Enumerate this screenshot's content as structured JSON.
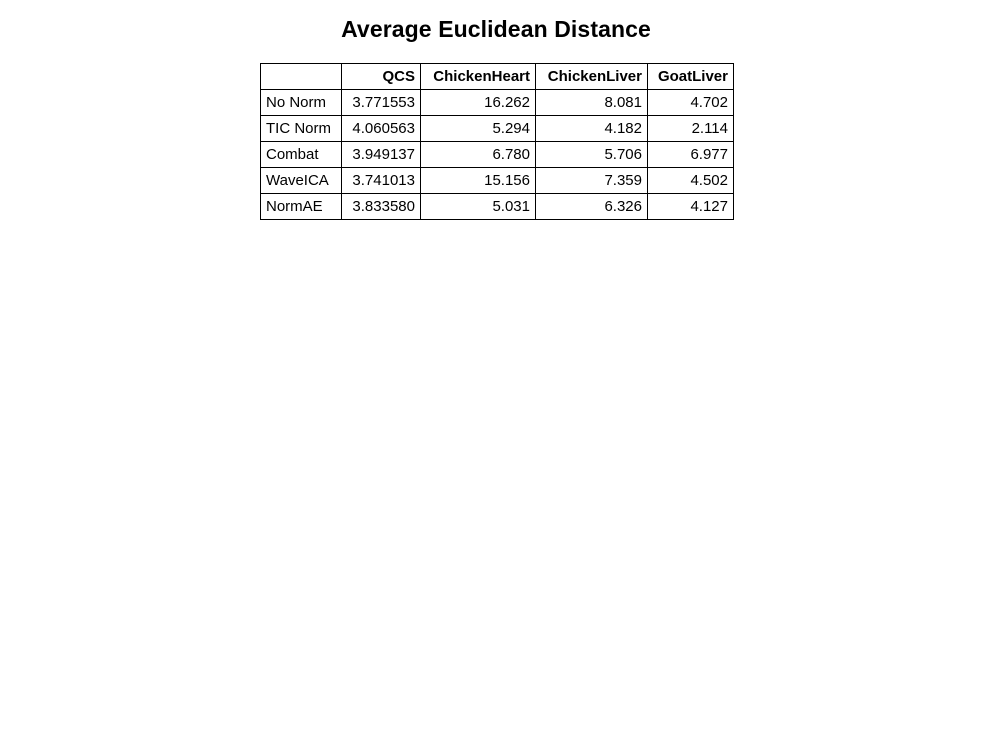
{
  "chart_data": {
    "type": "table",
    "title": "Average Euclidean Distance",
    "columns": [
      "",
      "QCS",
      "ChickenHeart",
      "ChickenLiver",
      "GoatLiver"
    ],
    "rows": [
      {
        "label": "No Norm",
        "values": [
          "3.771553",
          "16.262",
          "8.081",
          "4.702"
        ]
      },
      {
        "label": "TIC Norm",
        "values": [
          "4.060563",
          "5.294",
          "4.182",
          "2.114"
        ]
      },
      {
        "label": "Combat",
        "values": [
          "3.949137",
          "6.780",
          "5.706",
          "6.977"
        ]
      },
      {
        "label": "WaveICA",
        "values": [
          "3.741013",
          "15.156",
          "7.359",
          "4.502"
        ]
      },
      {
        "label": "NormAE",
        "values": [
          "3.833580",
          "5.031",
          "6.326",
          "4.127"
        ]
      }
    ]
  }
}
